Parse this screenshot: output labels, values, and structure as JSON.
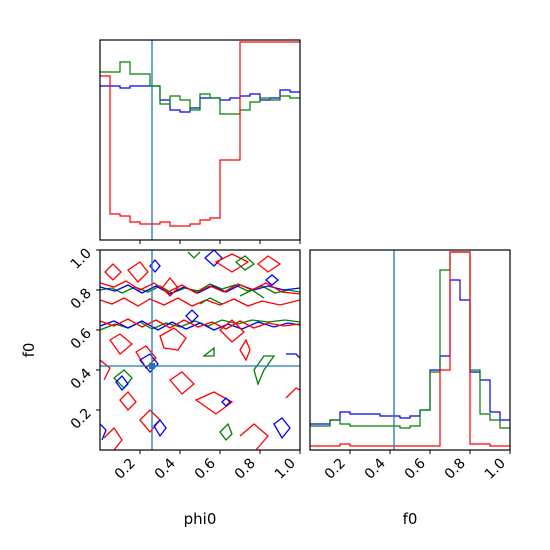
{
  "chart_data": {
    "type": "corner",
    "parameters": [
      "phi0",
      "f0"
    ],
    "truth": {
      "phi0": 0.26,
      "f0": 0.42
    },
    "colors": {
      "blue": "#0000ff",
      "green": "#008000",
      "red": "#ff0000",
      "truth": "#1f77b4"
    },
    "axes": {
      "xlim": [
        0.0,
        1.0
      ],
      "ylim": [
        0.0,
        1.0
      ],
      "x_ticks": [
        "0.2",
        "0.4",
        "0.6",
        "0.8",
        "1.0"
      ],
      "y_ticks": [
        "0.2",
        "0.4",
        "0.6",
        "0.8",
        "1.0"
      ],
      "x_label_bottom_left": "phi0",
      "x_label_bottom_right": "f0",
      "y_label_left": "f0"
    },
    "hist_phi0": {
      "bins": 20,
      "series": [
        {
          "color": "blue",
          "values": [
            0.77,
            0.77,
            0.76,
            0.77,
            0.77,
            0.77,
            0.7,
            0.65,
            0.64,
            0.66,
            0.71,
            0.71,
            0.7,
            0.71,
            0.72,
            0.73,
            0.7,
            0.71,
            0.75,
            0.74
          ]
        },
        {
          "color": "green",
          "values": [
            0.84,
            0.84,
            0.89,
            0.83,
            0.83,
            0.77,
            0.68,
            0.72,
            0.7,
            0.65,
            0.73,
            0.71,
            0.63,
            0.63,
            0.65,
            0.69,
            0.71,
            0.7,
            0.72,
            0.71
          ]
        },
        {
          "color": "red",
          "values": [
            0.82,
            0.13,
            0.12,
            0.09,
            0.08,
            0.08,
            0.09,
            0.07,
            0.07,
            0.08,
            0.1,
            0.11,
            0.4,
            0.4,
            0.99,
            0.99,
            0.99,
            0.99,
            0.99,
            0.99
          ]
        }
      ]
    },
    "hist_f0": {
      "bins": 20,
      "series": [
        {
          "color": "blue",
          "values": [
            0.13,
            0.13,
            0.15,
            0.19,
            0.18,
            0.18,
            0.18,
            0.17,
            0.17,
            0.16,
            0.17,
            0.2,
            0.4,
            0.47,
            0.85,
            0.75,
            0.39,
            0.35,
            0.19,
            0.15
          ]
        },
        {
          "color": "green",
          "values": [
            0.12,
            0.12,
            0.15,
            0.13,
            0.12,
            0.12,
            0.12,
            0.12,
            0.12,
            0.11,
            0.12,
            0.2,
            0.39,
            0.9,
            0.99,
            0.99,
            0.4,
            0.18,
            0.15,
            0.11
          ]
        },
        {
          "color": "red",
          "values": [
            0.02,
            0.02,
            0.02,
            0.03,
            0.02,
            0.02,
            0.02,
            0.02,
            0.02,
            0.02,
            0.02,
            0.02,
            0.02,
            0.4,
            0.99,
            0.99,
            0.03,
            0.03,
            0.02,
            0.02
          ]
        }
      ]
    }
  }
}
